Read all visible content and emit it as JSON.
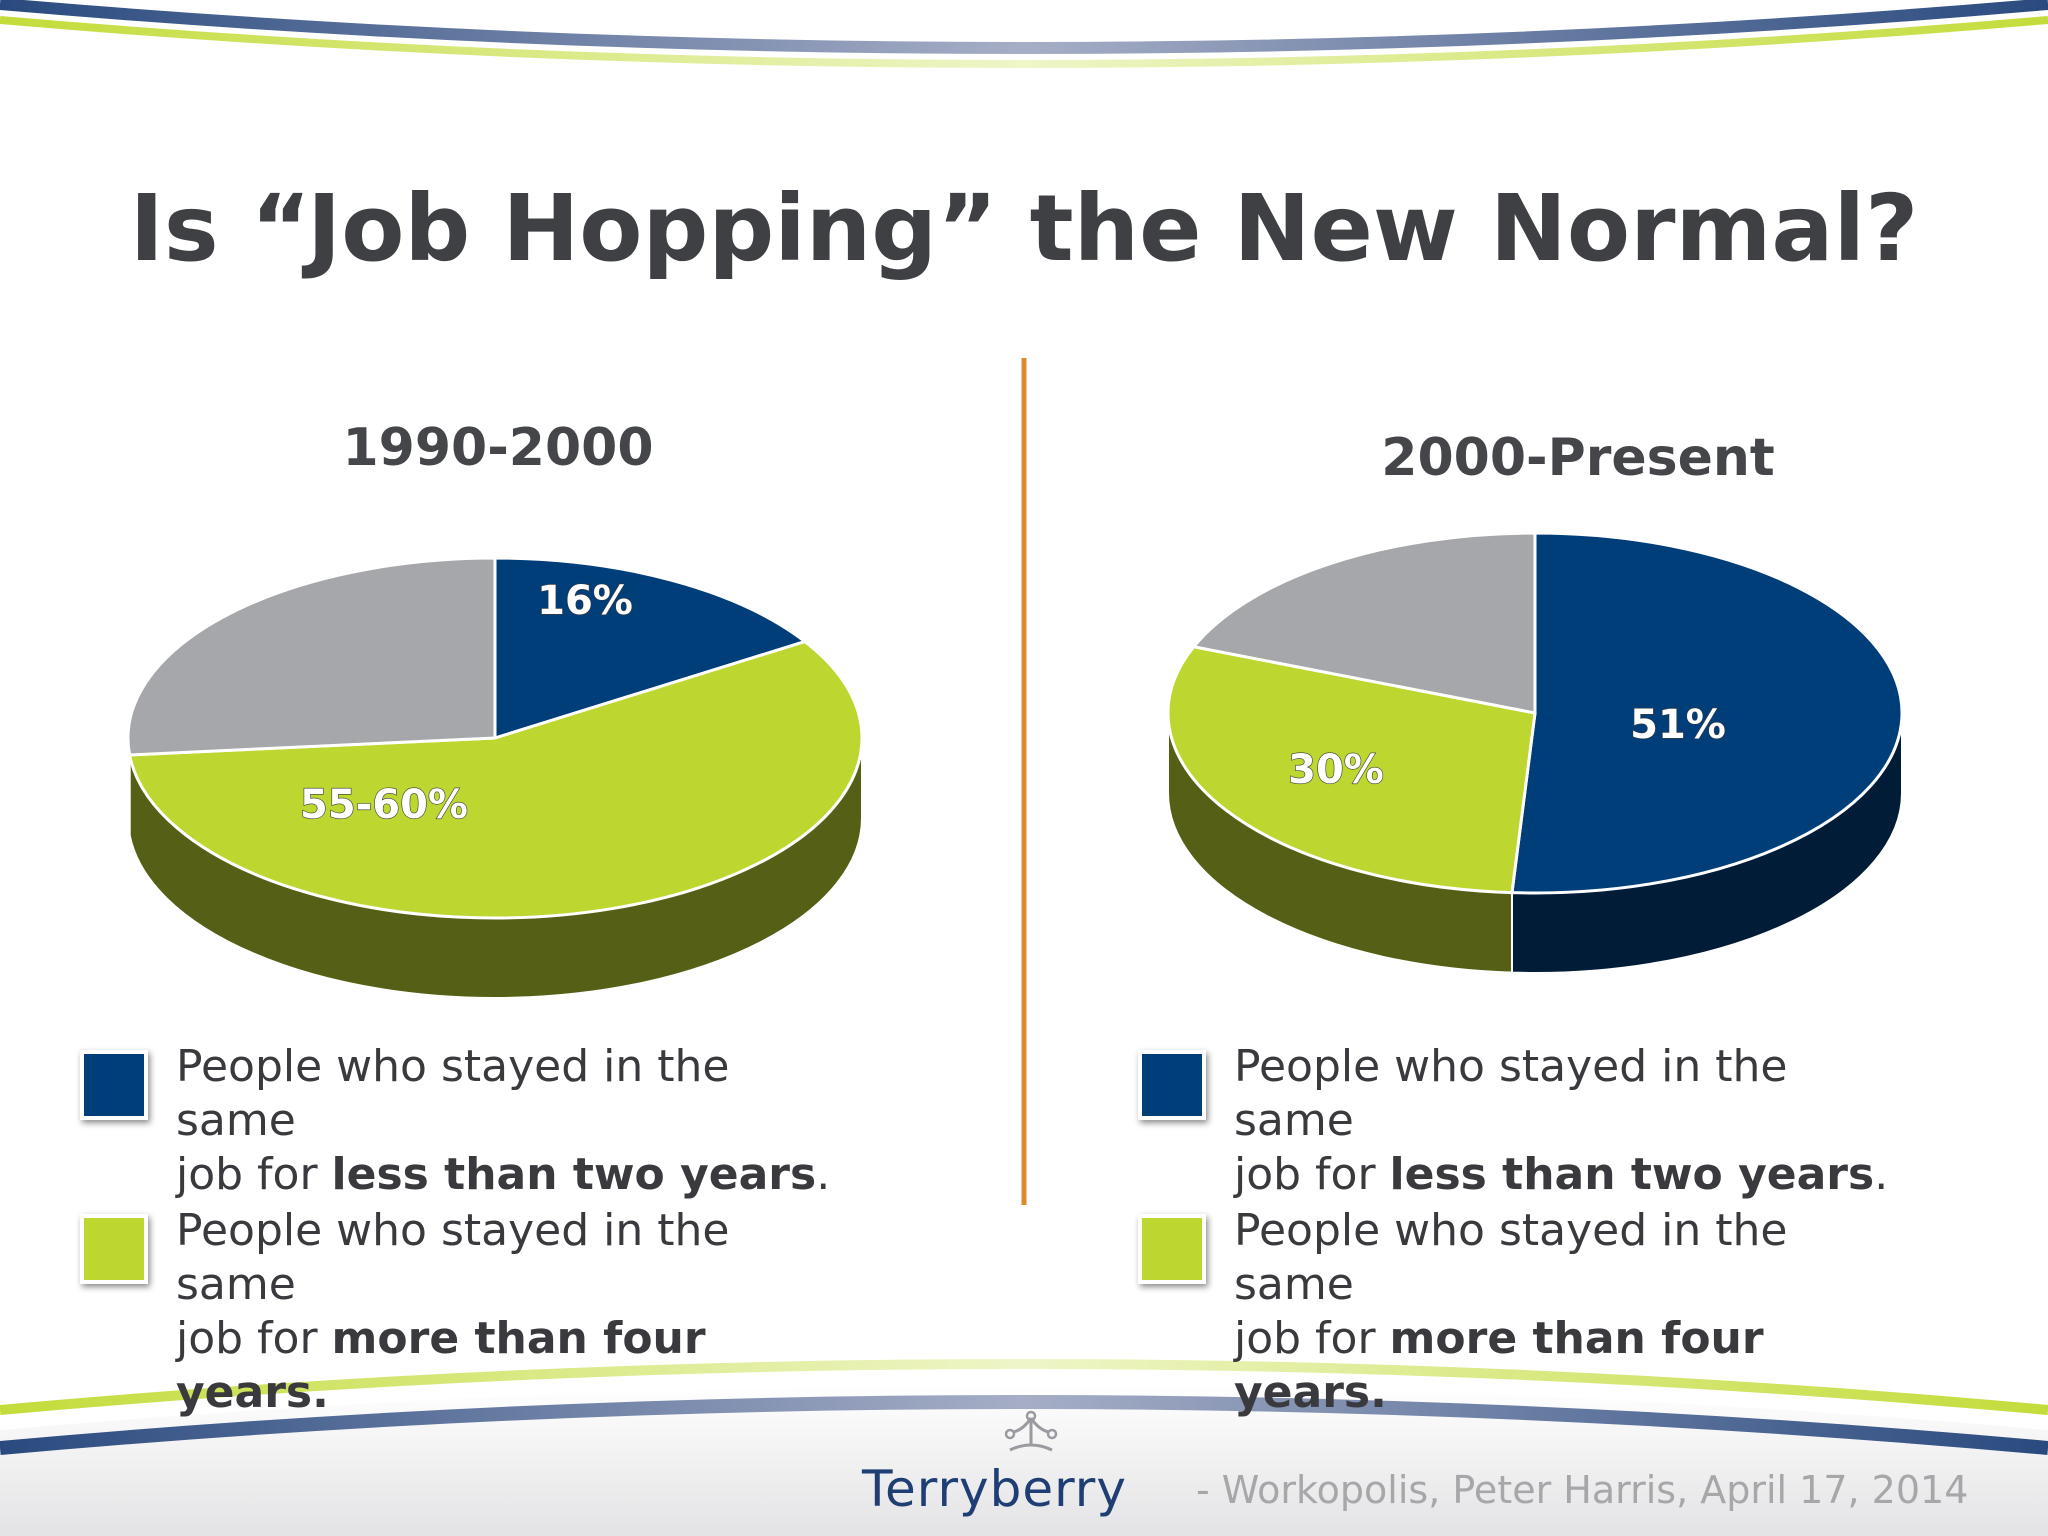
{
  "slide": {
    "title": "Is “Job Hopping” the New Normal?"
  },
  "panels": [
    {
      "heading": "1990-2000",
      "legend": [
        {
          "prefix_line1": "People who stayed in the same",
          "prefix_line2": "job for ",
          "bold": "less than two years",
          "suffix": "."
        },
        {
          "prefix_line1": "People who stayed in the same",
          "prefix_line2": "job for ",
          "bold": "more than four years.",
          "suffix": ""
        }
      ]
    },
    {
      "heading": "2000-Present",
      "legend": [
        {
          "prefix_line1": "People who stayed in the same",
          "prefix_line2": "job for ",
          "bold": "less than two years",
          "suffix": "."
        },
        {
          "prefix_line1": "People who stayed in the same",
          "prefix_line2": "job for ",
          "bold": "more than four years.",
          "suffix": ""
        }
      ]
    }
  ],
  "chart_data": [
    {
      "type": "pie",
      "title": "1990-2000",
      "slices": [
        {
          "name": "less than two years",
          "value": 16,
          "label": "16%",
          "color": "#003e7a"
        },
        {
          "name": "more than four years",
          "value": 57.5,
          "label": "55-60%",
          "color": "#bdd630"
        },
        {
          "name": "other",
          "value": 26.5,
          "label": "",
          "color": "#a6a7aa"
        }
      ],
      "legend_placement": "bottom"
    },
    {
      "type": "pie",
      "title": "2000-Present",
      "slices": [
        {
          "name": "less than two years",
          "value": 51,
          "label": "51%",
          "color": "#003e7a"
        },
        {
          "name": "more than four years",
          "value": 30,
          "label": "30%",
          "color": "#bdd630"
        },
        {
          "name": "other",
          "value": 19,
          "label": "",
          "color": "#a6a7aa"
        }
      ],
      "legend_placement": "bottom"
    }
  ],
  "footer": {
    "brand": "Terryberry",
    "source": "- Workopolis, Peter Harris, April 17, 2014"
  },
  "colors": {
    "navy": "#003e7a",
    "lime": "#bdd630",
    "gray": "#a6a7aa",
    "divider": "#d98a2b",
    "title_text": "#3f4044"
  }
}
